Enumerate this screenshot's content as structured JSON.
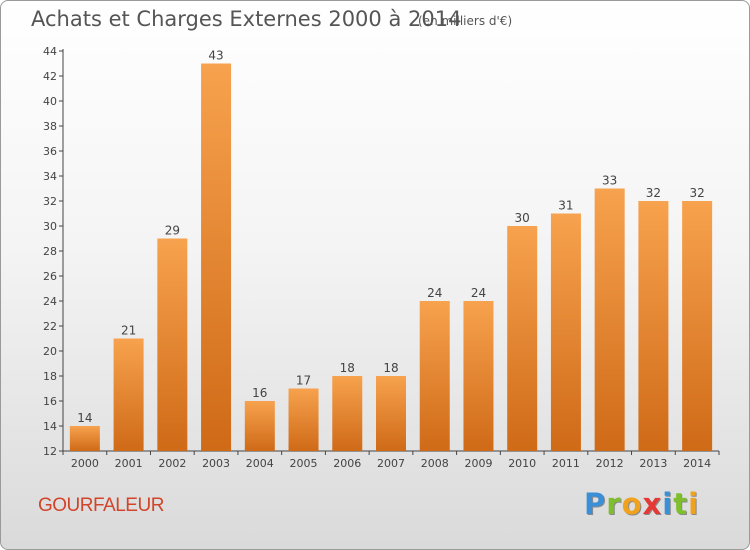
{
  "chart_data": {
    "type": "bar",
    "title": "Achats et Charges Externes 2000 à 2014",
    "subtitle": "(en milliers d'€)",
    "categories": [
      "2000",
      "2001",
      "2002",
      "2003",
      "2004",
      "2005",
      "2006",
      "2007",
      "2008",
      "2009",
      "2010",
      "2011",
      "2012",
      "2013",
      "2014"
    ],
    "values": [
      14,
      21,
      29,
      43,
      16,
      17,
      18,
      18,
      24,
      24,
      30,
      31,
      33,
      32,
      32
    ],
    "ylim": [
      12,
      44
    ],
    "yticks": [
      12,
      14,
      16,
      18,
      20,
      22,
      24,
      26,
      28,
      30,
      32,
      34,
      36,
      38,
      40,
      42,
      44
    ],
    "grid": false,
    "data_labels": true,
    "bar_color": "#f0923a",
    "bar_color_dark": "#cf6a17"
  },
  "footer": {
    "place": "GOURFALEUR",
    "logo_letters": [
      "P",
      "r",
      "o",
      "x",
      "i",
      "t",
      "i"
    ],
    "logo_colors": [
      "#3a8fd6",
      "#7fbf2e",
      "#f0a21f",
      "#e53935",
      "#3a8fd6",
      "#7fbf2e",
      "#f0a21f"
    ]
  }
}
